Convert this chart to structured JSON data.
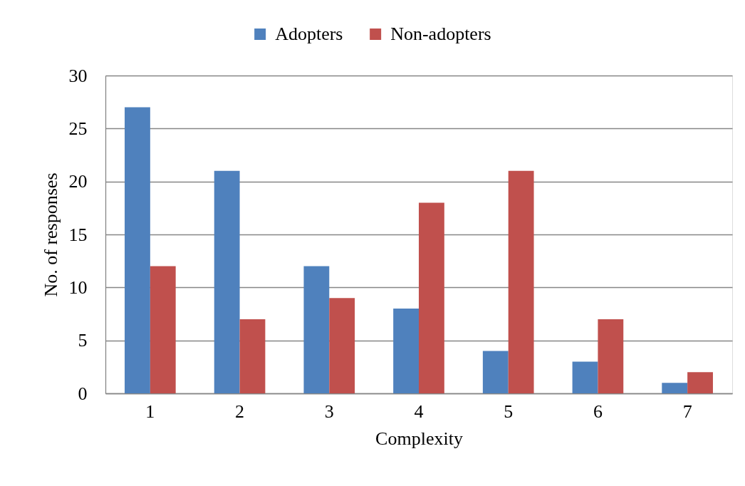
{
  "chart_data": {
    "type": "bar",
    "xlabel": "Complexity",
    "ylabel": "No. of responses",
    "categories": [
      "1",
      "2",
      "3",
      "4",
      "5",
      "6",
      "7"
    ],
    "series": [
      {
        "name": "Adopters",
        "color": "#4f81bd",
        "values": [
          27,
          21,
          12,
          8,
          4,
          3,
          1
        ]
      },
      {
        "name": "Non-adopters",
        "color": "#c0504d",
        "values": [
          12,
          7,
          9,
          18,
          21,
          7,
          2
        ]
      }
    ],
    "ylim": [
      0,
      30
    ],
    "yticks": [
      0,
      5,
      10,
      15,
      20,
      25,
      30
    ],
    "grid": "y",
    "legend": "top"
  }
}
